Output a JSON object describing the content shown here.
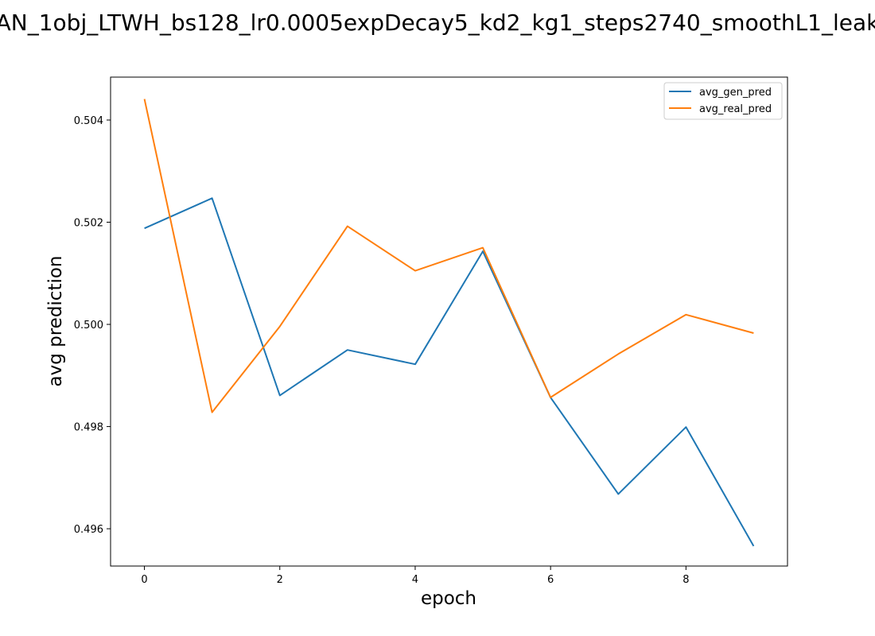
{
  "chart_data": {
    "type": "line",
    "title": "AN_1obj_LTWH_bs128_lr0.0005expDecay5_kd2_kg1_steps2740_smoothL1_leak",
    "xlabel": "epoch",
    "ylabel": "avg prediction",
    "xlim": [
      -0.5,
      9.5
    ],
    "ylim": [
      0.49527,
      0.50484
    ],
    "x_ticks": [
      0,
      2,
      4,
      6,
      8
    ],
    "y_ticks": [
      0.496,
      0.498,
      0.5,
      0.502,
      0.504
    ],
    "y_tick_labels": [
      "0.496",
      "0.498",
      "0.500",
      "0.502",
      "0.504"
    ],
    "grid": false,
    "legend_position": "top-right",
    "x": [
      0,
      1,
      2,
      3,
      4,
      5,
      6,
      7,
      8,
      9
    ],
    "series": [
      {
        "name": "avg_gen_pred",
        "color": "#1f77b4",
        "values": [
          0.50188,
          0.50247,
          0.49861,
          0.4995,
          0.49922,
          0.50143,
          0.49857,
          0.49668,
          0.49799,
          0.49566
        ]
      },
      {
        "name": "avg_real_pred",
        "color": "#ff7f0e",
        "values": [
          0.50441,
          0.49828,
          0.49996,
          0.50192,
          0.50105,
          0.5015,
          0.49857,
          0.49942,
          0.50019,
          0.49983
        ]
      }
    ]
  }
}
